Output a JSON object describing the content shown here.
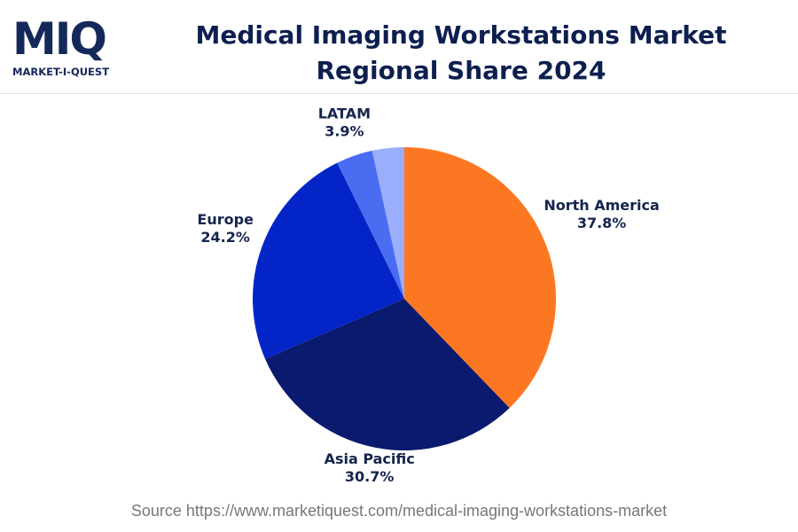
{
  "logo": {
    "mark": "MIQ",
    "text": "MARKET-I-QUEST"
  },
  "chart_data": {
    "type": "pie",
    "title": "Medical Imaging Workstations Market Regional Share 2024",
    "categories": [
      "North America",
      "Asia Pacific",
      "Europe",
      "LATAM",
      null
    ],
    "values": [
      37.8,
      30.7,
      24.2,
      3.9,
      3.4
    ],
    "value_labels": [
      "37.8%",
      "30.7%",
      "24.2%",
      "3.9%",
      null
    ],
    "colors": [
      "#fc7722",
      "#0a1a6e",
      "#0325c8",
      "#4a6cf0",
      "#9aaefc"
    ],
    "source": "Source https://www.marketiquest.com/medical-imaging-workstations-market"
  }
}
